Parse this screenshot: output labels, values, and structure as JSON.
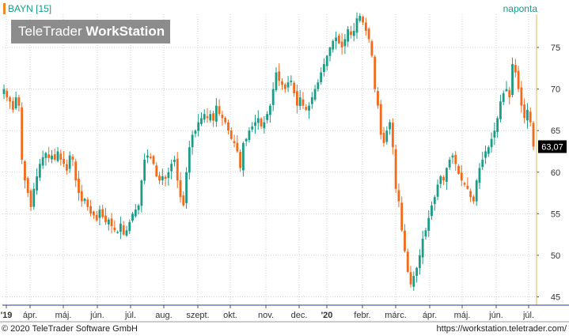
{
  "header": {
    "symbol": "BAYN [15]",
    "period": "naponta"
  },
  "logo": {
    "brand_regular": "TeleTrader",
    "brand_bold": "WorkStation"
  },
  "footer": {
    "copyright": "© 2020 TeleTrader Software GmbH",
    "url": "https://workstation.teletrader.com/"
  },
  "colors": {
    "up": "#1a9c86",
    "down": "#f26a1b",
    "grid": "#cfcfcf",
    "axis_line": "#1c3c8c",
    "last_price_bg": "#000000"
  },
  "chart_data": {
    "type": "candlestick",
    "title": "",
    "xlabel": "",
    "ylabel": "",
    "ylim": [
      44,
      79
    ],
    "yticks": [
      45,
      50,
      55,
      60,
      65,
      70,
      75
    ],
    "last_price": "63,07",
    "x_labels": [
      {
        "label": "'19",
        "month_index": 0,
        "bold": true
      },
      {
        "label": "ápr.",
        "month_index": 1
      },
      {
        "label": "máj.",
        "month_index": 2
      },
      {
        "label": "jún.",
        "month_index": 3
      },
      {
        "label": "júl.",
        "month_index": 4
      },
      {
        "label": "aug.",
        "month_index": 5
      },
      {
        "label": "szept.",
        "month_index": 6
      },
      {
        "label": "okt.",
        "month_index": 7
      },
      {
        "label": "nov.",
        "month_index": 8
      },
      {
        "label": "dec.",
        "month_index": 9
      },
      {
        "label": "'20",
        "month_index": 10,
        "bold": true
      },
      {
        "label": "febr.",
        "month_index": 11
      },
      {
        "label": "márc.",
        "month_index": 12
      },
      {
        "label": "ápr.",
        "month_index": 13
      },
      {
        "label": "máj.",
        "month_index": 14
      },
      {
        "label": "jún.",
        "month_index": 15
      },
      {
        "label": "júl.",
        "month_index": 16
      }
    ],
    "close_path": [
      70.0,
      69.0,
      68.5,
      67.5,
      69.0,
      68.0,
      61.5,
      59.0,
      57.5,
      55.8,
      58.0,
      59.5,
      61.0,
      61.8,
      62.3,
      61.7,
      62.0,
      61.5,
      62.5,
      61.5,
      61.0,
      60.2,
      62.0,
      61.5,
      59.0,
      57.5,
      56.5,
      56.8,
      55.8,
      55.0,
      54.8,
      54.2,
      55.5,
      54.6,
      54.0,
      54.3,
      53.5,
      53.0,
      52.8,
      53.8,
      52.5,
      53.0,
      54.0,
      55.0,
      55.5,
      56.0,
      59.0,
      61.5,
      62.0,
      61.7,
      61.0,
      59.5,
      59.0,
      59.5,
      59.2,
      60.0,
      61.0,
      61.5,
      59.0,
      57.0,
      56.0,
      60.0,
      63.0,
      64.5,
      65.0,
      66.0,
      66.5,
      67.0,
      66.5,
      67.0,
      66.2,
      68.0,
      67.0,
      66.5,
      66.0,
      65.0,
      64.0,
      63.5,
      62.5,
      60.5,
      63.5,
      64.0,
      65.0,
      65.5,
      66.0,
      66.5,
      65.5,
      66.0,
      67.0,
      68.0,
      70.0,
      72.0,
      71.0,
      70.5,
      70.0,
      70.8,
      71.0,
      69.5,
      68.0,
      69.0,
      68.0,
      67.5,
      68.0,
      69.0,
      70.0,
      70.8,
      72.0,
      73.0,
      74.0,
      75.0,
      75.8,
      76.2,
      75.5,
      75.0,
      76.0,
      77.2,
      76.5,
      77.0,
      78.5,
      78.8,
      78.0,
      77.0,
      76.0,
      74.0,
      70.0,
      68.0,
      64.5,
      63.5,
      65.0,
      66.0,
      63.0,
      58.0,
      56.5,
      53.0,
      50.5,
      48.0,
      46.5,
      47.5,
      48.5,
      50.0,
      52.0,
      53.0,
      54.5,
      56.0,
      57.0,
      58.5,
      59.5,
      59.0,
      60.5,
      61.5,
      62.0,
      61.0,
      59.8,
      59.0,
      58.5,
      58.0,
      57.0,
      56.5,
      59.0,
      60.5,
      61.5,
      62.5,
      63.0,
      64.0,
      65.0,
      66.5,
      68.5,
      69.5,
      70.0,
      69.0,
      73.0,
      72.0,
      70.0,
      68.0,
      66.5,
      67.5,
      66.0,
      63.07
    ]
  }
}
